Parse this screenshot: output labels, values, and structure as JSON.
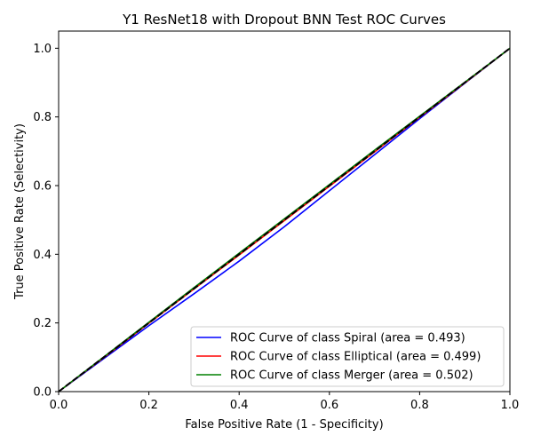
{
  "chart_data": {
    "type": "line",
    "title": "Y1 ResNet18 with Dropout BNN Test ROC Curves",
    "xlabel": "False Positive Rate (1 - Specificity)",
    "ylabel": "True Positive Rate (Selectivity)",
    "xlim": [
      0,
      1
    ],
    "ylim": [
      0,
      1.05
    ],
    "xticks": [
      "0.0",
      "0.2",
      "0.4",
      "0.6",
      "0.8",
      "1.0"
    ],
    "yticks": [
      "0.0",
      "0.2",
      "0.4",
      "0.6",
      "0.8",
      "1.0"
    ],
    "legend_position": "lower-right",
    "series": [
      {
        "name": "ROC Curve of class Spiral (area = 0.493)",
        "color": "#0000ff",
        "x": [
          0,
          0.1,
          0.2,
          0.3,
          0.4,
          0.5,
          0.6,
          0.7,
          0.8,
          0.9,
          1.0
        ],
        "y": [
          0,
          0.096,
          0.192,
          0.285,
          0.38,
          0.48,
          0.585,
          0.69,
          0.795,
          0.898,
          1.0
        ]
      },
      {
        "name": "ROC Curve of class Elliptical (area = 0.499)",
        "color": "#ff0000",
        "x": [
          0,
          0.1,
          0.2,
          0.3,
          0.4,
          0.5,
          0.6,
          0.7,
          0.8,
          0.9,
          1.0
        ],
        "y": [
          0,
          0.099,
          0.199,
          0.299,
          0.398,
          0.498,
          0.598,
          0.698,
          0.799,
          0.899,
          1.0
        ]
      },
      {
        "name": "ROC Curve of class Merger (area = 0.502)",
        "color": "#008000",
        "x": [
          0,
          0.1,
          0.2,
          0.3,
          0.4,
          0.5,
          0.6,
          0.7,
          0.8,
          0.9,
          1.0
        ],
        "y": [
          0,
          0.101,
          0.202,
          0.303,
          0.403,
          0.503,
          0.603,
          0.703,
          0.802,
          0.901,
          1.0
        ]
      }
    ],
    "reference_line": {
      "color": "#000000",
      "style": "dashed",
      "x": [
        0,
        1
      ],
      "y": [
        0,
        1
      ]
    }
  }
}
